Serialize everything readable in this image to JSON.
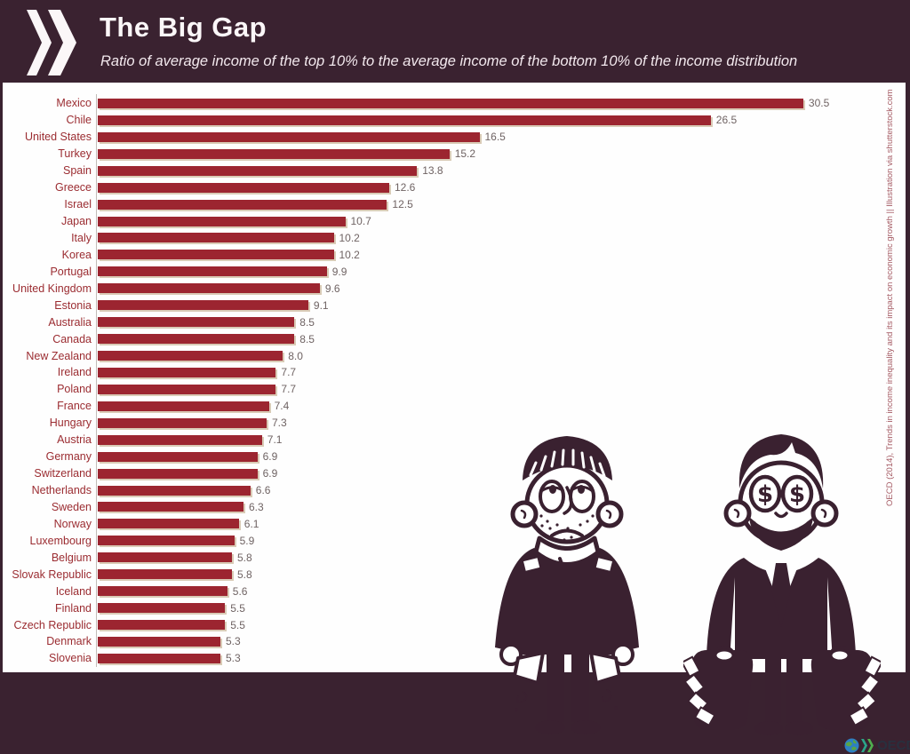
{
  "header": {
    "title": "The Big Gap",
    "subtitle": "Ratio of average income of the top 10% to the average income of the bottom 10% of the income distribution",
    "logo": "oecd-double-chevron"
  },
  "chart_data": {
    "type": "bar",
    "orientation": "horizontal",
    "title": "The Big Gap",
    "subtitle": "Ratio of average income of the top 10% to the average income of the bottom 10% of the income distribution",
    "xlabel": "",
    "ylabel": "",
    "xlim": [
      0,
      31
    ],
    "grid": false,
    "legend": false,
    "categories": [
      "Mexico",
      "Chile",
      "United States",
      "Turkey",
      "Spain",
      "Greece",
      "Israel",
      "Japan",
      "Italy",
      "Korea",
      "Portugal",
      "United Kingdom",
      "Estonia",
      "Australia",
      "Canada",
      "New Zealand",
      "Ireland",
      "Poland",
      "France",
      "Hungary",
      "Austria",
      "Germany",
      "Switzerland",
      "Netherlands",
      "Sweden",
      "Norway",
      "Luxembourg",
      "Belgium",
      "Slovak Republic",
      "Iceland",
      "Finland",
      "Czech Republic",
      "Denmark",
      "Slovenia"
    ],
    "values": [
      30.5,
      26.5,
      16.5,
      15.2,
      13.8,
      12.6,
      12.5,
      10.7,
      10.2,
      10.2,
      9.9,
      9.6,
      9.1,
      8.5,
      8.5,
      8.0,
      7.7,
      7.7,
      7.4,
      7.3,
      7.1,
      6.9,
      6.9,
      6.6,
      6.3,
      6.1,
      5.9,
      5.8,
      5.8,
      5.6,
      5.5,
      5.5,
      5.3,
      5.3
    ]
  },
  "attribution": {
    "side_text": "OECD (2014), Trends in income inequality and its impact on economic growth || Illustration via shutterstock.com"
  },
  "footer_logo": {
    "text": "OECD",
    "icon": "globe-icon"
  },
  "illustrations": {
    "left": "poor-man-empty-pockets",
    "right": "rich-man-money-bags"
  },
  "colors": {
    "header_bg": "#3a2230",
    "panel_bg": "#fefefe",
    "bar": "#9c2530",
    "category_label": "#9b2c31",
    "value_label": "#6f6363",
    "side_text": "#a55b64",
    "axis_line": "#c2bcb8",
    "illustration": "#3a2130"
  }
}
